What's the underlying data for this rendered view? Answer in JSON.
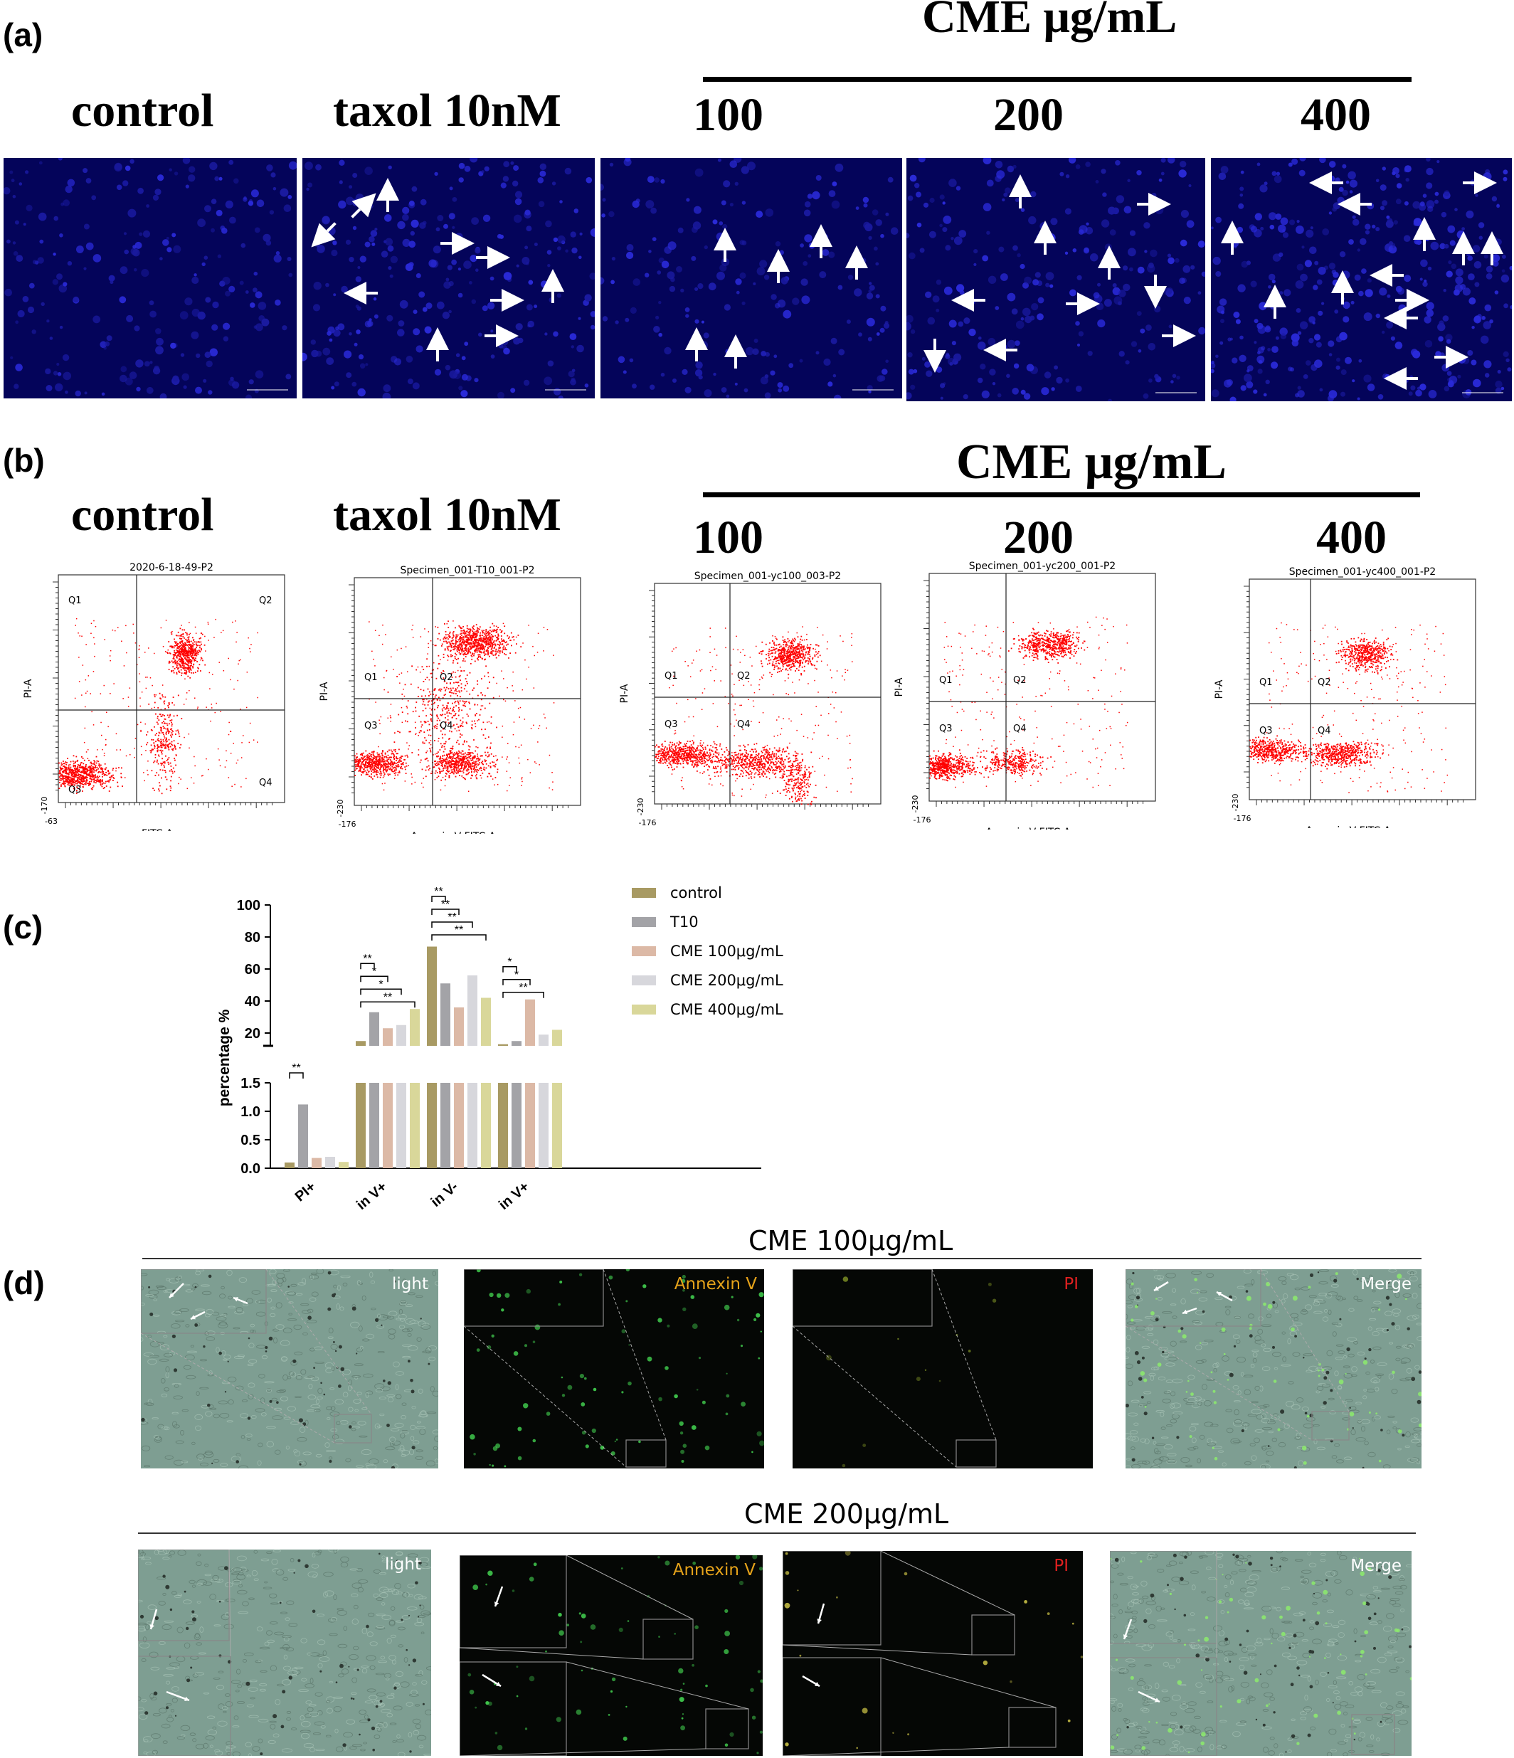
{
  "panels": {
    "a": {
      "label": "(a)",
      "group_header": "CME μg/mL",
      "columns": [
        "control",
        "taxol 10nM",
        "100",
        "200",
        "400"
      ]
    },
    "b": {
      "label": "(b)",
      "group_header": "CME μg/mL",
      "columns": [
        "control",
        "taxol 10nM",
        "100",
        "200",
        "400"
      ],
      "plots": [
        {
          "title": "2020-6-18-49-P2",
          "xaxis": "FITC-A",
          "yaxis": "PI-A",
          "xmin": "-63",
          "ymin": "-170",
          "quadrants": [
            "Q1",
            "Q2",
            "Q3",
            "Q4"
          ]
        },
        {
          "title": "Specimen_001-T10_001-P2",
          "xaxis": "Annexin V FITC-A",
          "yaxis": "PI-A",
          "xmin": "-176",
          "ymin": "-230",
          "quadrants": [
            "Q1",
            "Q2",
            "Q3",
            "Q4"
          ]
        },
        {
          "title": "Specimen_001-yc100_003-P2",
          "xaxis": "Annexin V FITC-A",
          "yaxis": "PI-A",
          "xmin": "-176",
          "ymin": "-230",
          "quadrants": [
            "Q1",
            "Q2",
            "Q3",
            "Q4"
          ]
        },
        {
          "title": "Specimen_001-yc200_001-P2",
          "xaxis": "Annexin V FITC-A",
          "yaxis": "PI-A",
          "xmin": "-176",
          "ymin": "-230",
          "quadrants": [
            "Q1",
            "Q2",
            "Q3",
            "Q4"
          ]
        },
        {
          "title": "Specimen_001-yc400_001-P2",
          "xaxis": "Annexin V FITC-A",
          "yaxis": "PI-A",
          "xmin": "-176",
          "ymin": "-230",
          "quadrants": [
            "Q1",
            "Q2",
            "Q3",
            "Q4"
          ]
        }
      ]
    },
    "c": {
      "label": "(c)"
    },
    "d": {
      "label": "(d)",
      "rows": [
        {
          "title": "CME 100μg/mL",
          "tags": [
            "light",
            "Annexin V",
            "PI",
            "Merge"
          ]
        },
        {
          "title": "CME 200μg/mL",
          "tags": [
            "light",
            "Annexin V",
            "PI",
            "Merge"
          ]
        }
      ]
    }
  },
  "colors": {
    "microscopy_bg": "#04045a",
    "flow_dots": "#ff0000",
    "light_field": "#7e9e92",
    "fluor_bg": "#050705",
    "annexin_tag": "#e6a31a",
    "pi_tag": "#e02020",
    "series": [
      "#a89a63",
      "#a3a3a7",
      "#dcb9a6",
      "#d7d7dc",
      "#d9d79a"
    ]
  },
  "chart_data": {
    "type": "bar",
    "ylabel": "percentage %",
    "categories": [
      "PI+",
      "in V+",
      "in V-",
      "in V+"
    ],
    "y_axis_segments": [
      {
        "range": [
          0,
          1.5
        ],
        "ticks": [
          "0.0",
          "0.5",
          "1.0",
          "1.5"
        ]
      },
      {
        "range": [
          0,
          100
        ],
        "ticks": [
          "20",
          "40",
          "60",
          "80",
          "100"
        ]
      }
    ],
    "series": [
      {
        "name": "control",
        "values": [
          0.1,
          15,
          74,
          13
        ]
      },
      {
        "name": "T10",
        "values": [
          1.12,
          33,
          51,
          15
        ]
      },
      {
        "name": "CME 100μg/mL",
        "values": [
          0.18,
          23,
          36,
          41
        ]
      },
      {
        "name": "CME 200μg/mL",
        "values": [
          0.2,
          25,
          56,
          19
        ]
      },
      {
        "name": "CME 400μg/mL",
        "values": [
          0.11,
          35,
          42,
          22
        ]
      }
    ],
    "significance": [
      {
        "group": 0,
        "marks": [
          "**"
        ]
      },
      {
        "group": 1,
        "marks": [
          "**",
          "*",
          "*",
          "**"
        ]
      },
      {
        "group": 2,
        "marks": [
          "**",
          "**",
          "**",
          "**"
        ]
      },
      {
        "group": 3,
        "marks": [
          "*",
          "*",
          "**"
        ]
      }
    ],
    "legend_position": "right"
  }
}
